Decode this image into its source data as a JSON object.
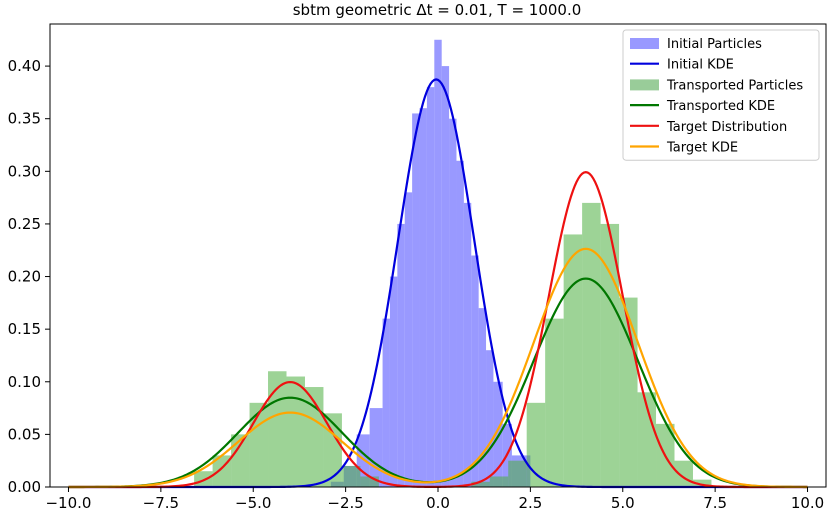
{
  "chart_data": {
    "type": "histogram",
    "title": "sbtm geometric Δt = 0.01, T = 1000.0",
    "xlabel": "",
    "ylabel": "",
    "xlim": [
      -10.5,
      10.5
    ],
    "ylim": [
      0,
      0.44
    ],
    "grid": false,
    "legend_position": "top-right",
    "x_ticks": [
      -10.0,
      -7.5,
      -5.0,
      -2.5,
      0.0,
      2.5,
      5.0,
      7.5,
      10.0
    ],
    "x_tick_labels": [
      "−10.0",
      "−7.5",
      "−5.0",
      "−2.5",
      "0.0",
      "2.5",
      "5.0",
      "7.5",
      "10.0"
    ],
    "y_ticks": [
      0.0,
      0.05,
      0.1,
      0.15,
      0.2,
      0.25,
      0.3,
      0.35,
      0.4
    ],
    "y_tick_labels": [
      "0.00",
      "0.05",
      "0.10",
      "0.15",
      "0.20",
      "0.25",
      "0.30",
      "0.35",
      "0.40"
    ],
    "histograms": [
      {
        "name": "Initial Particles",
        "color": "#7777ff",
        "opacity": 0.75,
        "bins": [
          {
            "x0": -2.9,
            "x1": -2.55,
            "y": 0.005
          },
          {
            "x0": -2.55,
            "x1": -2.2,
            "y": 0.02
          },
          {
            "x0": -2.2,
            "x1": -1.85,
            "y": 0.05
          },
          {
            "x0": -1.85,
            "x1": -1.5,
            "y": 0.075
          },
          {
            "x0": -1.5,
            "x1": -1.3,
            "y": 0.16
          },
          {
            "x0": -1.3,
            "x1": -1.1,
            "y": 0.2
          },
          {
            "x0": -1.1,
            "x1": -0.9,
            "y": 0.25
          },
          {
            "x0": -0.9,
            "x1": -0.7,
            "y": 0.28
          },
          {
            "x0": -0.7,
            "x1": -0.5,
            "y": 0.355
          },
          {
            "x0": -0.5,
            "x1": -0.3,
            "y": 0.36
          },
          {
            "x0": -0.3,
            "x1": -0.1,
            "y": 0.38
          },
          {
            "x0": -0.1,
            "x1": 0.1,
            "y": 0.425
          },
          {
            "x0": 0.1,
            "x1": 0.3,
            "y": 0.4
          },
          {
            "x0": 0.3,
            "x1": 0.5,
            "y": 0.35
          },
          {
            "x0": 0.5,
            "x1": 0.7,
            "y": 0.31
          },
          {
            "x0": 0.7,
            "x1": 0.9,
            "y": 0.27
          },
          {
            "x0": 0.9,
            "x1": 1.1,
            "y": 0.22
          },
          {
            "x0": 1.1,
            "x1": 1.3,
            "y": 0.17
          },
          {
            "x0": 1.3,
            "x1": 1.5,
            "y": 0.13
          },
          {
            "x0": 1.5,
            "x1": 1.75,
            "y": 0.1
          },
          {
            "x0": 1.75,
            "x1": 2.0,
            "y": 0.06
          },
          {
            "x0": 2.0,
            "x1": 2.5,
            "y": 0.03
          }
        ]
      },
      {
        "name": "Transported Particles",
        "color": "#4caf3f",
        "opacity": 0.55,
        "bins": [
          {
            "x0": -6.6,
            "x1": -6.1,
            "y": 0.015
          },
          {
            "x0": -6.1,
            "x1": -5.6,
            "y": 0.03
          },
          {
            "x0": -5.6,
            "x1": -5.1,
            "y": 0.05
          },
          {
            "x0": -5.1,
            "x1": -4.6,
            "y": 0.08
          },
          {
            "x0": -4.6,
            "x1": -4.1,
            "y": 0.11
          },
          {
            "x0": -4.1,
            "x1": -3.6,
            "y": 0.105
          },
          {
            "x0": -3.6,
            "x1": -3.1,
            "y": 0.095
          },
          {
            "x0": -3.1,
            "x1": -2.6,
            "y": 0.07
          },
          {
            "x0": -2.6,
            "x1": -2.1,
            "y": 0.02
          },
          {
            "x0": -2.1,
            "x1": -1.6,
            "y": 0.01
          },
          {
            "x0": 0.9,
            "x1": 1.4,
            "y": 0.005
          },
          {
            "x0": 1.4,
            "x1": 1.9,
            "y": 0.01
          },
          {
            "x0": 1.9,
            "x1": 2.4,
            "y": 0.025
          },
          {
            "x0": 2.4,
            "x1": 2.9,
            "y": 0.08
          },
          {
            "x0": 2.9,
            "x1": 3.4,
            "y": 0.16
          },
          {
            "x0": 3.4,
            "x1": 3.9,
            "y": 0.24
          },
          {
            "x0": 3.9,
            "x1": 4.4,
            "y": 0.27
          },
          {
            "x0": 4.4,
            "x1": 4.9,
            "y": 0.25
          },
          {
            "x0": 4.9,
            "x1": 5.4,
            "y": 0.18
          },
          {
            "x0": 5.4,
            "x1": 5.9,
            "y": 0.09
          },
          {
            "x0": 5.9,
            "x1": 6.4,
            "y": 0.06
          },
          {
            "x0": 6.4,
            "x1": 6.9,
            "y": 0.025
          },
          {
            "x0": 6.9,
            "x1": 7.4,
            "y": 0.007
          }
        ]
      }
    ],
    "curves": [
      {
        "name": "Initial KDE",
        "color": "#0000dd",
        "components": [
          {
            "weight": 1.0,
            "mean": -0.05,
            "sd": 1.03
          }
        ]
      },
      {
        "name": "Transported KDE",
        "color": "#007700",
        "components": [
          {
            "weight": 0.3,
            "mean": -4.0,
            "sd": 1.41
          },
          {
            "weight": 0.7,
            "mean": 4.0,
            "sd": 1.41
          }
        ]
      },
      {
        "name": "Target Distribution",
        "color": "#ee1111",
        "components": [
          {
            "weight": 0.25,
            "mean": -4.0,
            "sd": 1.0
          },
          {
            "weight": 0.75,
            "mean": 4.0,
            "sd": 1.0
          }
        ]
      },
      {
        "name": "Target KDE",
        "color": "#ffa500",
        "components": [
          {
            "weight": 0.25,
            "mean": -4.0,
            "sd": 1.41
          },
          {
            "weight": 0.8,
            "mean": 4.0,
            "sd": 1.41
          }
        ]
      }
    ],
    "legend": [
      {
        "label": "Initial Particles",
        "kind": "patch",
        "color": "#9999ff"
      },
      {
        "label": "Initial KDE",
        "kind": "line",
        "color": "#0000dd"
      },
      {
        "label": "Transported Particles",
        "kind": "patch",
        "color": "#99cc99"
      },
      {
        "label": "Transported KDE",
        "kind": "line",
        "color": "#007700"
      },
      {
        "label": "Target Distribution",
        "kind": "line",
        "color": "#ee1111"
      },
      {
        "label": "Target KDE",
        "kind": "line",
        "color": "#ffa500"
      }
    ]
  }
}
